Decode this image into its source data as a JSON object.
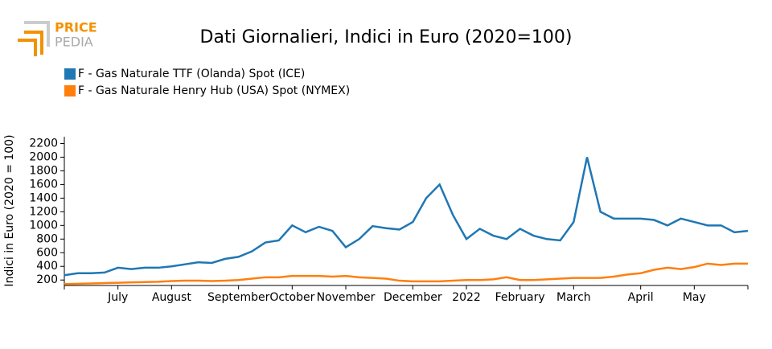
{
  "logo": {
    "line1": "PRICE",
    "line2": "PEDIA"
  },
  "chart_data": {
    "type": "line",
    "title": "Dati Giornalieri, Indici in Euro (2020=100)",
    "ylabel": "Indici in Euro (2020 = 100)",
    "categories": [
      null,
      null,
      null,
      null,
      "July",
      null,
      null,
      null,
      "August",
      null,
      null,
      null,
      null,
      "September",
      null,
      null,
      null,
      "October",
      null,
      null,
      null,
      "November",
      null,
      null,
      null,
      null,
      "December",
      null,
      null,
      null,
      "2022",
      null,
      null,
      null,
      "February",
      null,
      null,
      null,
      "March",
      null,
      null,
      null,
      null,
      "April",
      null,
      null,
      null,
      "May",
      null,
      null,
      null,
      null
    ],
    "series": [
      {
        "name": "F - Gas Naturale TTF (Olanda) Spot (ICE)",
        "color": "#1f77b4",
        "values": [
          270,
          300,
          300,
          310,
          380,
          360,
          380,
          380,
          400,
          430,
          460,
          450,
          510,
          540,
          620,
          750,
          780,
          1000,
          900,
          980,
          920,
          680,
          800,
          990,
          960,
          940,
          1050,
          1400,
          1600,
          1150,
          800,
          950,
          850,
          800,
          950,
          850,
          800,
          780,
          1050,
          2000,
          1200,
          1100,
          1100,
          1100,
          1080,
          1000,
          1100,
          1050,
          1000,
          1000,
          900,
          920
        ]
      },
      {
        "name": "F - Gas Naturale Henry Hub (USA) Spot (NYMEX)",
        "color": "#ff7f0e",
        "values": [
          140,
          145,
          150,
          155,
          160,
          165,
          170,
          175,
          185,
          190,
          190,
          185,
          190,
          200,
          220,
          240,
          240,
          260,
          260,
          260,
          250,
          260,
          240,
          230,
          220,
          190,
          180,
          180,
          180,
          190,
          200,
          200,
          210,
          240,
          200,
          200,
          210,
          220,
          230,
          230,
          230,
          250,
          280,
          300,
          350,
          380,
          360,
          390,
          440,
          420,
          440,
          440
        ]
      }
    ],
    "ylim": [
      120,
      2300
    ],
    "yticks": [
      200,
      400,
      600,
      800,
      1000,
      1200,
      1400,
      1600,
      1800,
      2000,
      2200
    ],
    "grid": false
  }
}
